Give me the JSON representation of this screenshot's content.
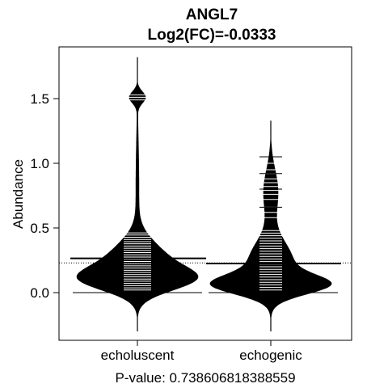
{
  "chart_data": {
    "type": "violin",
    "title": "ANGL7",
    "subtitle": "Log2(FC)=-0.0333",
    "xlabel": "P-value: 0.738606818388559",
    "ylabel": "Abundance",
    "categories": [
      "echoluscent",
      "echogenic"
    ],
    "ylim": [
      -0.38,
      1.9
    ],
    "yticks": [
      0.0,
      0.5,
      1.0,
      1.5
    ],
    "ytick_labels": [
      "0.0",
      "0.5",
      "1.0",
      "1.5"
    ],
    "overall_mean": 0.23,
    "group_means": [
      0.265,
      0.225
    ],
    "grid": false,
    "legend": "none",
    "colors": {
      "fill": "#000000",
      "lines": "#ffffff",
      "background": "#ffffff"
    }
  }
}
